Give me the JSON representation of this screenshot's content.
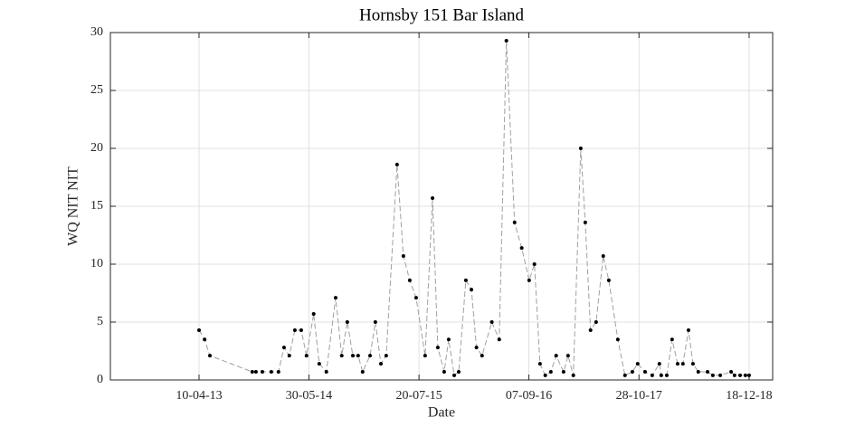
{
  "chart_data": {
    "type": "line",
    "title": "Hornsby 151 Bar Island",
    "x_label": "Date",
    "y_label": "WQ NIT NIT",
    "x": [
      "2013-04-10",
      "2013-05-01",
      "2013-05-21",
      "2013-10-28",
      "2013-11-11",
      "2013-12-05",
      "2014-01-08",
      "2014-02-04",
      "2014-02-25",
      "2014-03-17",
      "2014-04-07",
      "2014-05-01",
      "2014-05-21",
      "2014-06-17",
      "2014-07-08",
      "2014-08-04",
      "2014-09-08",
      "2014-10-01",
      "2014-10-22",
      "2014-11-12",
      "2014-12-02",
      "2014-12-19",
      "2015-01-16",
      "2015-02-05",
      "2015-02-26",
      "2015-03-18",
      "2015-04-28",
      "2015-05-22",
      "2015-06-15",
      "2015-07-09",
      "2015-08-12",
      "2015-09-09",
      "2015-09-29",
      "2015-10-23",
      "2015-11-09",
      "2015-11-30",
      "2015-12-17",
      "2016-01-13",
      "2016-02-03",
      "2016-02-22",
      "2016-03-14",
      "2016-04-20",
      "2016-05-18",
      "2016-06-14",
      "2016-07-15",
      "2016-08-11",
      "2016-09-08",
      "2016-09-28",
      "2016-10-19",
      "2016-11-08",
      "2016-11-29",
      "2016-12-19",
      "2017-01-16",
      "2017-02-02",
      "2017-02-22",
      "2017-03-22",
      "2017-04-08",
      "2017-04-28",
      "2017-05-19",
      "2017-06-15",
      "2017-07-06",
      "2017-08-09",
      "2017-09-05",
      "2017-10-03",
      "2017-10-23",
      "2017-11-20",
      "2017-12-17",
      "2018-01-13",
      "2018-01-20",
      "2018-02-10",
      "2018-03-02",
      "2018-03-23",
      "2018-04-12",
      "2018-05-03",
      "2018-05-20",
      "2018-06-09",
      "2018-07-14",
      "2018-08-03",
      "2018-08-31",
      "2018-10-11",
      "2018-10-24",
      "2018-11-14",
      "2018-12-04",
      "2018-12-18"
    ],
    "series": [
      {
        "name": "WQ NIT NIT",
        "color": "#000000",
        "line_color": "#a0a0a0",
        "values": [
          4.3,
          3.5,
          2.1,
          0.7,
          0.7,
          0.7,
          0.7,
          0.7,
          2.8,
          2.1,
          4.3,
          4.3,
          2.1,
          5.7,
          1.4,
          0.7,
          7.1,
          2.1,
          5.0,
          2.1,
          2.1,
          0.7,
          2.1,
          5.0,
          1.4,
          2.1,
          18.6,
          10.7,
          8.6,
          7.1,
          2.1,
          15.7,
          2.8,
          0.7,
          3.5,
          0.4,
          0.7,
          8.6,
          7.8,
          2.8,
          2.1,
          5.0,
          3.5,
          29.3,
          13.6,
          11.4,
          8.6,
          10.0,
          1.4,
          0.4,
          0.7,
          2.1,
          0.7,
          2.1,
          0.4,
          20.0,
          13.6,
          4.3,
          5.0,
          10.7,
          8.6,
          3.5,
          0.4,
          0.7,
          1.4,
          0.7,
          0.4,
          1.4,
          0.4,
          0.4,
          3.5,
          1.4,
          1.4,
          4.3,
          1.4,
          0.7,
          0.7,
          0.4,
          0.4,
          0.7,
          0.4,
          0.4,
          0.4,
          0.4
        ]
      }
    ],
    "xlim": [
      "2012-05-10",
      "2019-03-17"
    ],
    "xticks": [
      {
        "value": "2013-04-10",
        "label": "10-04-13"
      },
      {
        "value": "2014-05-30",
        "label": "30-05-14"
      },
      {
        "value": "2015-07-20",
        "label": "20-07-15"
      },
      {
        "value": "2016-09-07",
        "label": "07-09-16"
      },
      {
        "value": "2017-10-28",
        "label": "28-10-17"
      },
      {
        "value": "2018-12-18",
        "label": "18-12-18"
      }
    ],
    "ylim": [
      0,
      30
    ],
    "yticks": [
      0,
      5,
      10,
      15,
      20,
      25,
      30
    ],
    "grid": true
  }
}
